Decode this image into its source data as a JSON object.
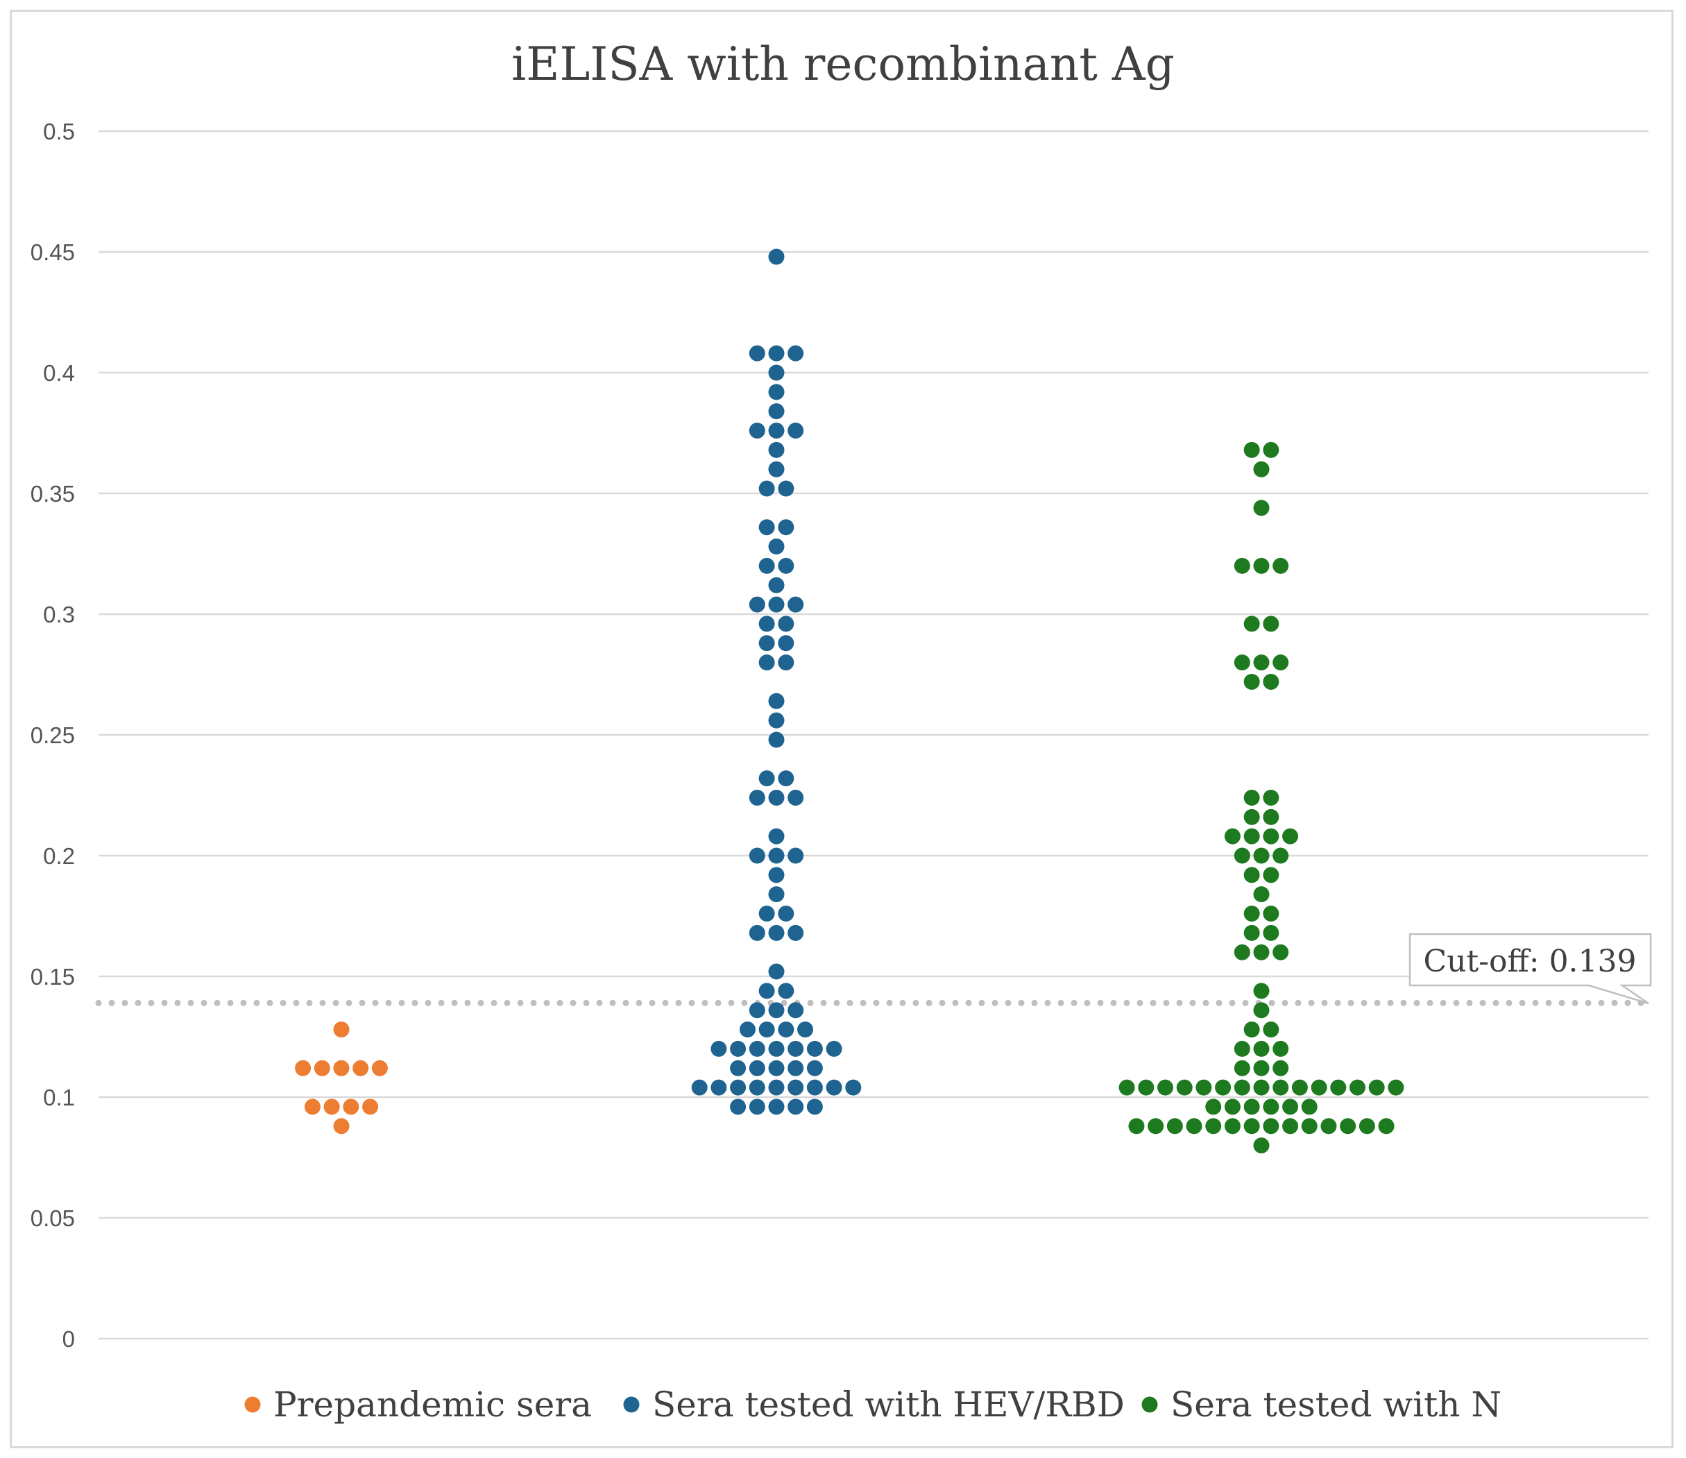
{
  "chart_data": {
    "type": "scatter",
    "subtype": "beeswarm dot plot",
    "title": "iELISA with recombinant Ag",
    "xlabel": "",
    "ylabel": "",
    "ylim": [
      0,
      0.5
    ],
    "yticks": [
      0,
      0.05,
      0.1,
      0.15,
      0.2,
      0.25,
      0.3,
      0.35,
      0.4,
      0.45,
      0.5
    ],
    "ytick_labels": [
      "0",
      "0.05",
      "0.1",
      "0.15",
      "0.2",
      "0.25",
      "0.3",
      "0.35",
      "0.4",
      "0.45",
      "0.5"
    ],
    "grid": true,
    "legend_position": "bottom",
    "reference_line": {
      "value": 0.139,
      "label": "Cut-off: 0.139",
      "style": "dotted",
      "color": "#bfbfbf"
    },
    "series": [
      {
        "name": "Prepandemic sera",
        "color": "#ED7D31",
        "column": 1,
        "bins": [
          {
            "y": 0.128,
            "count": 1
          },
          {
            "y": 0.112,
            "count": 5
          },
          {
            "y": 0.096,
            "count": 4
          },
          {
            "y": 0.088,
            "count": 1
          }
        ]
      },
      {
        "name": "Sera tested with HEV/RBD",
        "color": "#1F6391",
        "column": 2,
        "bins": [
          {
            "y": 0.448,
            "count": 1
          },
          {
            "y": 0.408,
            "count": 3
          },
          {
            "y": 0.4,
            "count": 1
          },
          {
            "y": 0.392,
            "count": 1
          },
          {
            "y": 0.384,
            "count": 1
          },
          {
            "y": 0.376,
            "count": 3
          },
          {
            "y": 0.368,
            "count": 1
          },
          {
            "y": 0.36,
            "count": 1
          },
          {
            "y": 0.352,
            "count": 2
          },
          {
            "y": 0.336,
            "count": 2
          },
          {
            "y": 0.328,
            "count": 1
          },
          {
            "y": 0.32,
            "count": 2
          },
          {
            "y": 0.312,
            "count": 1
          },
          {
            "y": 0.304,
            "count": 3
          },
          {
            "y": 0.296,
            "count": 2
          },
          {
            "y": 0.288,
            "count": 2
          },
          {
            "y": 0.28,
            "count": 2
          },
          {
            "y": 0.264,
            "count": 1
          },
          {
            "y": 0.256,
            "count": 1
          },
          {
            "y": 0.248,
            "count": 1
          },
          {
            "y": 0.232,
            "count": 2
          },
          {
            "y": 0.224,
            "count": 3
          },
          {
            "y": 0.208,
            "count": 1
          },
          {
            "y": 0.2,
            "count": 3
          },
          {
            "y": 0.192,
            "count": 1
          },
          {
            "y": 0.184,
            "count": 1
          },
          {
            "y": 0.176,
            "count": 2
          },
          {
            "y": 0.168,
            "count": 3
          },
          {
            "y": 0.152,
            "count": 1
          },
          {
            "y": 0.144,
            "count": 2
          },
          {
            "y": 0.136,
            "count": 3
          },
          {
            "y": 0.128,
            "count": 4
          },
          {
            "y": 0.12,
            "count": 7
          },
          {
            "y": 0.112,
            "count": 5
          },
          {
            "y": 0.104,
            "count": 9
          },
          {
            "y": 0.096,
            "count": 5
          }
        ]
      },
      {
        "name": "Sera tested with N",
        "color": "#1E7A1E",
        "column": 3,
        "bins": [
          {
            "y": 0.368,
            "count": 2
          },
          {
            "y": 0.36,
            "count": 1
          },
          {
            "y": 0.344,
            "count": 1
          },
          {
            "y": 0.32,
            "count": 3
          },
          {
            "y": 0.296,
            "count": 2
          },
          {
            "y": 0.28,
            "count": 3
          },
          {
            "y": 0.272,
            "count": 2
          },
          {
            "y": 0.224,
            "count": 2
          },
          {
            "y": 0.216,
            "count": 2
          },
          {
            "y": 0.208,
            "count": 4
          },
          {
            "y": 0.2,
            "count": 3
          },
          {
            "y": 0.192,
            "count": 2
          },
          {
            "y": 0.184,
            "count": 1
          },
          {
            "y": 0.176,
            "count": 2
          },
          {
            "y": 0.168,
            "count": 2
          },
          {
            "y": 0.16,
            "count": 3
          },
          {
            "y": 0.144,
            "count": 1
          },
          {
            "y": 0.136,
            "count": 1
          },
          {
            "y": 0.128,
            "count": 2
          },
          {
            "y": 0.12,
            "count": 3
          },
          {
            "y": 0.112,
            "count": 3
          },
          {
            "y": 0.104,
            "count": 15
          },
          {
            "y": 0.096,
            "count": 6
          },
          {
            "y": 0.088,
            "count": 14
          },
          {
            "y": 0.08,
            "count": 1
          }
        ]
      }
    ]
  }
}
